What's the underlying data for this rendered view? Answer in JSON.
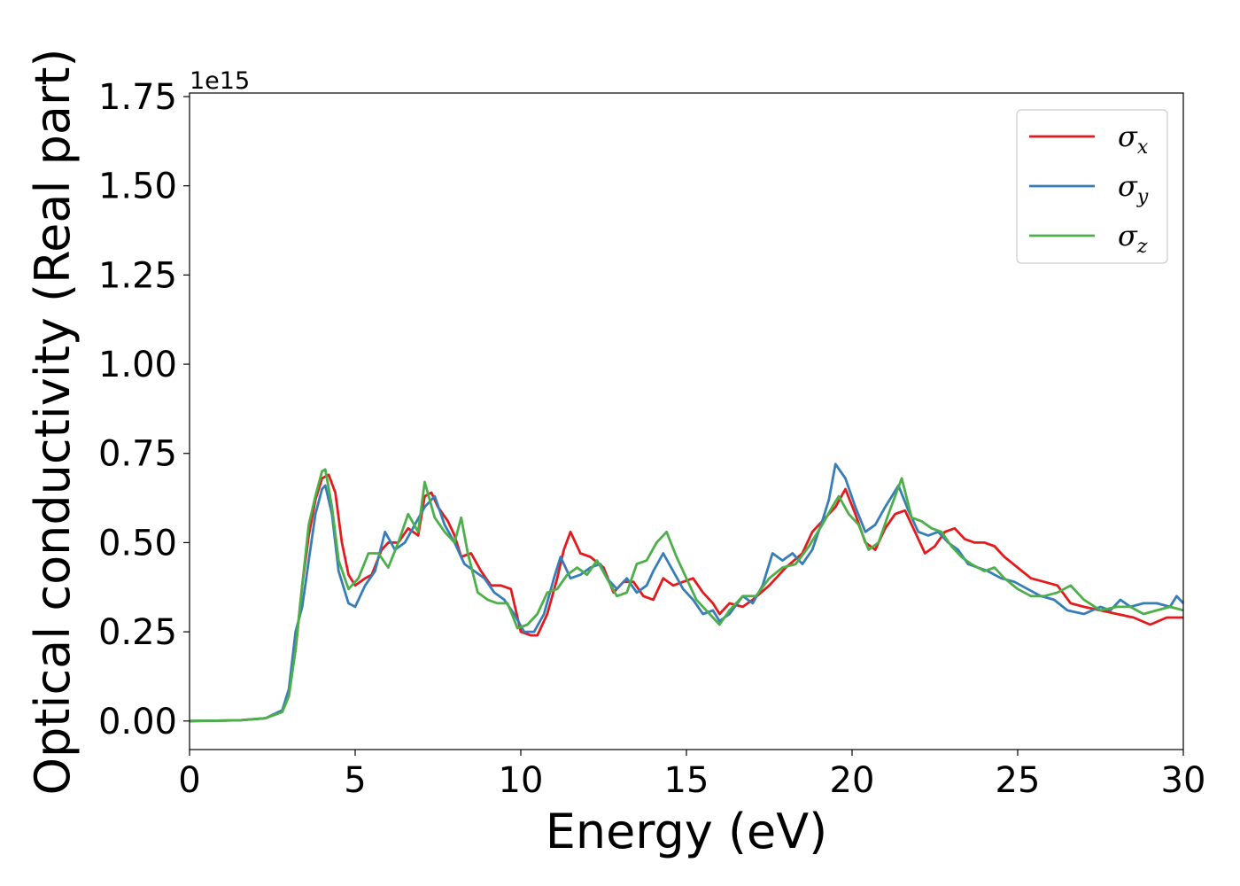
{
  "chart_data": {
    "type": "line",
    "xlabel": "Energy (eV)",
    "ylabel": "Optical conductivity (Real part)",
    "y_offset_label": "1e15",
    "xlim": [
      0,
      30
    ],
    "ylim": [
      -0.08,
      1.76
    ],
    "xticks": [
      0,
      5,
      10,
      15,
      20,
      25,
      30
    ],
    "xtick_labels": [
      "0",
      "5",
      "10",
      "15",
      "20",
      "25",
      "30"
    ],
    "yticks": [
      0.0,
      0.25,
      0.5,
      0.75,
      1.0,
      1.25,
      1.5,
      1.75
    ],
    "ytick_labels": [
      "0.00",
      "0.25",
      "0.50",
      "0.75",
      "1.00",
      "1.25",
      "1.50",
      "1.75"
    ],
    "grid": false,
    "legend_position": "top-right",
    "series": [
      {
        "name": "σx",
        "symbol": "σ",
        "subscript": "x",
        "color": "#e41a1c",
        "points": [
          [
            0,
            0.0
          ],
          [
            1.5,
            0.002
          ],
          [
            2.3,
            0.008
          ],
          [
            2.8,
            0.03
          ],
          [
            3.0,
            0.08
          ],
          [
            3.2,
            0.2
          ],
          [
            3.4,
            0.38
          ],
          [
            3.6,
            0.52
          ],
          [
            3.8,
            0.62
          ],
          [
            4.0,
            0.68
          ],
          [
            4.2,
            0.69
          ],
          [
            4.4,
            0.64
          ],
          [
            4.6,
            0.5
          ],
          [
            4.8,
            0.41
          ],
          [
            5.0,
            0.38
          ],
          [
            5.3,
            0.4
          ],
          [
            5.5,
            0.41
          ],
          [
            5.8,
            0.48
          ],
          [
            6.0,
            0.5
          ],
          [
            6.3,
            0.5
          ],
          [
            6.6,
            0.54
          ],
          [
            6.9,
            0.52
          ],
          [
            7.1,
            0.63
          ],
          [
            7.3,
            0.64
          ],
          [
            7.5,
            0.6
          ],
          [
            7.8,
            0.56
          ],
          [
            8.0,
            0.52
          ],
          [
            8.2,
            0.46
          ],
          [
            8.5,
            0.47
          ],
          [
            8.8,
            0.42
          ],
          [
            9.1,
            0.38
          ],
          [
            9.4,
            0.38
          ],
          [
            9.7,
            0.37
          ],
          [
            10.0,
            0.25
          ],
          [
            10.3,
            0.24
          ],
          [
            10.5,
            0.24
          ],
          [
            10.8,
            0.3
          ],
          [
            11.1,
            0.4
          ],
          [
            11.3,
            0.48
          ],
          [
            11.5,
            0.53
          ],
          [
            11.8,
            0.47
          ],
          [
            12.1,
            0.46
          ],
          [
            12.5,
            0.43
          ],
          [
            12.8,
            0.36
          ],
          [
            13.1,
            0.39
          ],
          [
            13.4,
            0.39
          ],
          [
            13.7,
            0.35
          ],
          [
            14.0,
            0.34
          ],
          [
            14.3,
            0.4
          ],
          [
            14.6,
            0.38
          ],
          [
            14.9,
            0.39
          ],
          [
            15.2,
            0.4
          ],
          [
            15.5,
            0.36
          ],
          [
            15.8,
            0.33
          ],
          [
            16.0,
            0.3
          ],
          [
            16.3,
            0.33
          ],
          [
            16.7,
            0.32
          ],
          [
            17.0,
            0.34
          ],
          [
            17.5,
            0.38
          ],
          [
            18.0,
            0.43
          ],
          [
            18.5,
            0.47
          ],
          [
            18.8,
            0.53
          ],
          [
            19.2,
            0.57
          ],
          [
            19.5,
            0.6
          ],
          [
            19.8,
            0.65
          ],
          [
            20.1,
            0.58
          ],
          [
            20.4,
            0.5
          ],
          [
            20.7,
            0.48
          ],
          [
            21.0,
            0.54
          ],
          [
            21.3,
            0.58
          ],
          [
            21.6,
            0.59
          ],
          [
            21.9,
            0.53
          ],
          [
            22.2,
            0.47
          ],
          [
            22.5,
            0.49
          ],
          [
            22.8,
            0.53
          ],
          [
            23.1,
            0.54
          ],
          [
            23.4,
            0.51
          ],
          [
            23.7,
            0.5
          ],
          [
            24.0,
            0.5
          ],
          [
            24.3,
            0.49
          ],
          [
            24.6,
            0.46
          ],
          [
            25.0,
            0.43
          ],
          [
            25.4,
            0.4
          ],
          [
            25.8,
            0.39
          ],
          [
            26.2,
            0.38
          ],
          [
            26.6,
            0.33
          ],
          [
            27.0,
            0.32
          ],
          [
            27.5,
            0.31
          ],
          [
            28.0,
            0.3
          ],
          [
            28.5,
            0.29
          ],
          [
            29.0,
            0.27
          ],
          [
            29.5,
            0.29
          ],
          [
            30.0,
            0.29
          ]
        ]
      },
      {
        "name": "σy",
        "symbol": "σ",
        "subscript": "y",
        "color": "#377eb8",
        "points": [
          [
            0,
            0.0
          ],
          [
            1.5,
            0.002
          ],
          [
            2.3,
            0.008
          ],
          [
            2.8,
            0.03
          ],
          [
            3.0,
            0.09
          ],
          [
            3.2,
            0.25
          ],
          [
            3.4,
            0.32
          ],
          [
            3.6,
            0.45
          ],
          [
            3.8,
            0.58
          ],
          [
            4.0,
            0.65
          ],
          [
            4.1,
            0.66
          ],
          [
            4.3,
            0.58
          ],
          [
            4.5,
            0.42
          ],
          [
            4.8,
            0.33
          ],
          [
            5.0,
            0.32
          ],
          [
            5.3,
            0.38
          ],
          [
            5.6,
            0.42
          ],
          [
            5.9,
            0.53
          ],
          [
            6.2,
            0.48
          ],
          [
            6.5,
            0.5
          ],
          [
            6.8,
            0.55
          ],
          [
            7.1,
            0.6
          ],
          [
            7.4,
            0.63
          ],
          [
            7.7,
            0.55
          ],
          [
            8.0,
            0.5
          ],
          [
            8.3,
            0.44
          ],
          [
            8.6,
            0.42
          ],
          [
            8.9,
            0.4
          ],
          [
            9.2,
            0.36
          ],
          [
            9.5,
            0.34
          ],
          [
            9.8,
            0.3
          ],
          [
            10.1,
            0.25
          ],
          [
            10.4,
            0.25
          ],
          [
            10.7,
            0.3
          ],
          [
            11.0,
            0.4
          ],
          [
            11.2,
            0.46
          ],
          [
            11.5,
            0.4
          ],
          [
            11.8,
            0.41
          ],
          [
            12.1,
            0.43
          ],
          [
            12.4,
            0.44
          ],
          [
            12.6,
            0.4
          ],
          [
            12.9,
            0.37
          ],
          [
            13.2,
            0.4
          ],
          [
            13.5,
            0.36
          ],
          [
            13.8,
            0.38
          ],
          [
            14.0,
            0.42
          ],
          [
            14.3,
            0.47
          ],
          [
            14.6,
            0.42
          ],
          [
            14.9,
            0.37
          ],
          [
            15.2,
            0.34
          ],
          [
            15.5,
            0.3
          ],
          [
            15.8,
            0.31
          ],
          [
            16.0,
            0.28
          ],
          [
            16.3,
            0.3
          ],
          [
            16.7,
            0.35
          ],
          [
            17.0,
            0.33
          ],
          [
            17.3,
            0.38
          ],
          [
            17.6,
            0.47
          ],
          [
            17.9,
            0.45
          ],
          [
            18.2,
            0.47
          ],
          [
            18.5,
            0.44
          ],
          [
            18.8,
            0.48
          ],
          [
            19.1,
            0.56
          ],
          [
            19.3,
            0.62
          ],
          [
            19.5,
            0.72
          ],
          [
            19.8,
            0.68
          ],
          [
            20.1,
            0.6
          ],
          [
            20.4,
            0.53
          ],
          [
            20.7,
            0.55
          ],
          [
            21.0,
            0.6
          ],
          [
            21.4,
            0.66
          ],
          [
            21.7,
            0.59
          ],
          [
            22.0,
            0.53
          ],
          [
            22.3,
            0.52
          ],
          [
            22.6,
            0.53
          ],
          [
            22.9,
            0.5
          ],
          [
            23.2,
            0.48
          ],
          [
            23.5,
            0.44
          ],
          [
            23.8,
            0.43
          ],
          [
            24.1,
            0.42
          ],
          [
            24.5,
            0.4
          ],
          [
            24.9,
            0.39
          ],
          [
            25.3,
            0.37
          ],
          [
            25.7,
            0.35
          ],
          [
            26.1,
            0.34
          ],
          [
            26.5,
            0.31
          ],
          [
            27.0,
            0.3
          ],
          [
            27.5,
            0.32
          ],
          [
            27.8,
            0.31
          ],
          [
            28.1,
            0.34
          ],
          [
            28.4,
            0.32
          ],
          [
            28.8,
            0.33
          ],
          [
            29.2,
            0.33
          ],
          [
            29.6,
            0.32
          ],
          [
            29.8,
            0.35
          ],
          [
            30.0,
            0.33
          ]
        ]
      },
      {
        "name": "σz",
        "symbol": "σ",
        "subscript": "z",
        "color": "#4daf4a",
        "points": [
          [
            0,
            0.0
          ],
          [
            1.5,
            0.002
          ],
          [
            2.3,
            0.008
          ],
          [
            2.8,
            0.025
          ],
          [
            3.0,
            0.07
          ],
          [
            3.2,
            0.2
          ],
          [
            3.4,
            0.38
          ],
          [
            3.6,
            0.55
          ],
          [
            3.8,
            0.63
          ],
          [
            4.0,
            0.7
          ],
          [
            4.1,
            0.705
          ],
          [
            4.3,
            0.6
          ],
          [
            4.5,
            0.45
          ],
          [
            4.8,
            0.37
          ],
          [
            5.1,
            0.4
          ],
          [
            5.4,
            0.47
          ],
          [
            5.7,
            0.47
          ],
          [
            6.0,
            0.43
          ],
          [
            6.3,
            0.5
          ],
          [
            6.6,
            0.58
          ],
          [
            6.9,
            0.53
          ],
          [
            7.1,
            0.67
          ],
          [
            7.4,
            0.57
          ],
          [
            7.7,
            0.53
          ],
          [
            8.0,
            0.5
          ],
          [
            8.2,
            0.57
          ],
          [
            8.4,
            0.47
          ],
          [
            8.7,
            0.36
          ],
          [
            9.0,
            0.34
          ],
          [
            9.3,
            0.33
          ],
          [
            9.6,
            0.33
          ],
          [
            9.9,
            0.26
          ],
          [
            10.2,
            0.27
          ],
          [
            10.5,
            0.3
          ],
          [
            10.8,
            0.36
          ],
          [
            11.1,
            0.37
          ],
          [
            11.4,
            0.41
          ],
          [
            11.7,
            0.43
          ],
          [
            12.0,
            0.41
          ],
          [
            12.3,
            0.45
          ],
          [
            12.6,
            0.4
          ],
          [
            12.9,
            0.35
          ],
          [
            13.2,
            0.36
          ],
          [
            13.5,
            0.44
          ],
          [
            13.8,
            0.45
          ],
          [
            14.1,
            0.5
          ],
          [
            14.4,
            0.53
          ],
          [
            14.7,
            0.46
          ],
          [
            15.0,
            0.4
          ],
          [
            15.3,
            0.34
          ],
          [
            15.6,
            0.31
          ],
          [
            16.0,
            0.27
          ],
          [
            16.3,
            0.31
          ],
          [
            16.7,
            0.35
          ],
          [
            17.1,
            0.35
          ],
          [
            17.5,
            0.4
          ],
          [
            17.9,
            0.43
          ],
          [
            18.3,
            0.44
          ],
          [
            18.7,
            0.49
          ],
          [
            19.1,
            0.55
          ],
          [
            19.4,
            0.6
          ],
          [
            19.6,
            0.63
          ],
          [
            19.9,
            0.58
          ],
          [
            20.2,
            0.55
          ],
          [
            20.5,
            0.48
          ],
          [
            20.8,
            0.5
          ],
          [
            21.1,
            0.58
          ],
          [
            21.5,
            0.68
          ],
          [
            21.8,
            0.57
          ],
          [
            22.1,
            0.56
          ],
          [
            22.4,
            0.54
          ],
          [
            22.7,
            0.53
          ],
          [
            23.0,
            0.49
          ],
          [
            23.3,
            0.46
          ],
          [
            23.6,
            0.44
          ],
          [
            24.0,
            0.42
          ],
          [
            24.3,
            0.43
          ],
          [
            24.6,
            0.4
          ],
          [
            25.0,
            0.37
          ],
          [
            25.4,
            0.35
          ],
          [
            25.8,
            0.35
          ],
          [
            26.2,
            0.36
          ],
          [
            26.6,
            0.38
          ],
          [
            27.0,
            0.34
          ],
          [
            27.5,
            0.31
          ],
          [
            28.0,
            0.32
          ],
          [
            28.4,
            0.32
          ],
          [
            28.8,
            0.3
          ],
          [
            29.2,
            0.31
          ],
          [
            29.6,
            0.32
          ],
          [
            30.0,
            0.31
          ]
        ]
      }
    ]
  }
}
